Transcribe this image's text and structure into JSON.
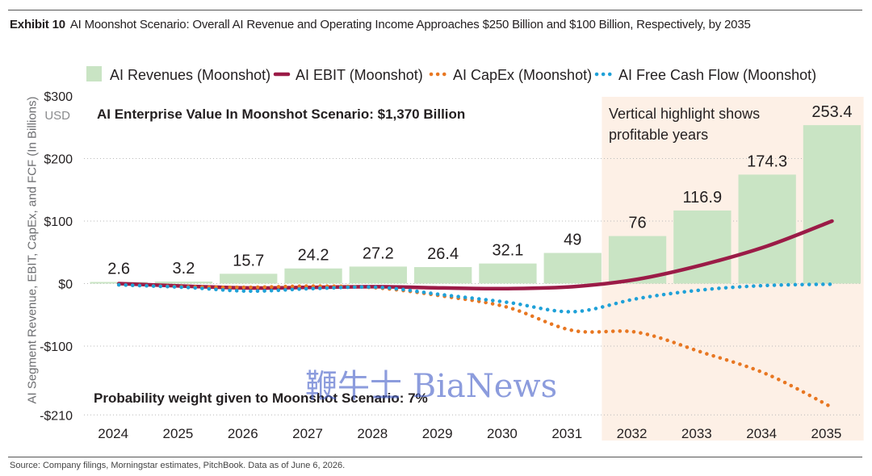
{
  "header": {
    "exhibit": "Exhibit 10",
    "title": "AI Moonshot Scenario: Overall AI Revenue and Operating Income Approaches $250 Billion and $100 Billion, Respectively, by 2035"
  },
  "watermark": "鞭牛士 BiaNews",
  "footer": {
    "source": "Source: Company filings, Morningstar estimates, PitchBook. Data as of June 6, 2026."
  },
  "chart_data": {
    "type": "bar",
    "title": "AI Moonshot Scenario: Overall AI Revenue and Operating Income Approaches $250 Billion and $100 Billion, Respectively, by 2035",
    "ylabel": "AI Segment Revenue, EBIT, CapEx, and FCF (In Billions)",
    "categories": [
      "2024",
      "2025",
      "2026",
      "2027",
      "2028",
      "2029",
      "2030",
      "2031",
      "2032",
      "2033",
      "2034",
      "2035"
    ],
    "ylim": [
      -210,
      300
    ],
    "y_ticks": [
      300,
      200,
      100,
      0,
      -100,
      -210
    ],
    "y_tick_labels": [
      "$300",
      "$200",
      "$100",
      "$0",
      "-$100",
      "-$210"
    ],
    "y_unit_label": "USD",
    "grid": true,
    "legend_position": "top",
    "series": [
      {
        "name": "AI Revenues (Moonshot)",
        "type": "bar",
        "color": "#c9e4c4",
        "values": [
          2.6,
          3.2,
          15.7,
          24.2,
          27.2,
          26.4,
          32.1,
          49,
          76,
          116.9,
          174.3,
          253.4
        ],
        "data_labels": [
          "2.6",
          "3.2",
          "15.7",
          "24.2",
          "27.2",
          "26.4",
          "32.1",
          "49",
          "76",
          "116.9",
          "174.3",
          "253.4"
        ]
      },
      {
        "name": "AI EBIT (Moonshot)",
        "type": "line",
        "style": "solid",
        "color": "#9b1b47",
        "values": [
          0,
          -4,
          -7,
          -6,
          -5,
          -7,
          -8,
          -5,
          7,
          30,
          60,
          100
        ]
      },
      {
        "name": "AI CapEx (Moonshot)",
        "type": "line",
        "style": "dotted",
        "color": "#e87722",
        "values": [
          -2,
          -5,
          -6,
          -4,
          -7,
          -20,
          -38,
          -75,
          -78,
          -110,
          -145,
          -198
        ]
      },
      {
        "name": "AI Free Cash Flow (Moonshot)",
        "type": "line",
        "style": "dotted",
        "color": "#1fa1d8",
        "values": [
          -2,
          -6,
          -12,
          -8,
          -6,
          -18,
          -30,
          -45,
          -24,
          -10,
          -3,
          -1
        ]
      }
    ],
    "highlight": {
      "from": "2032",
      "to": "2035",
      "color": "#fdf0e6",
      "label_lines": [
        "Vertical highlight shows",
        "profitable years"
      ]
    },
    "annotations": [
      "AI Enterprise Value In Moonshot Scenario: $1,370 Billion",
      "Probability weight given to Moonshot Scenario: 7%"
    ]
  }
}
